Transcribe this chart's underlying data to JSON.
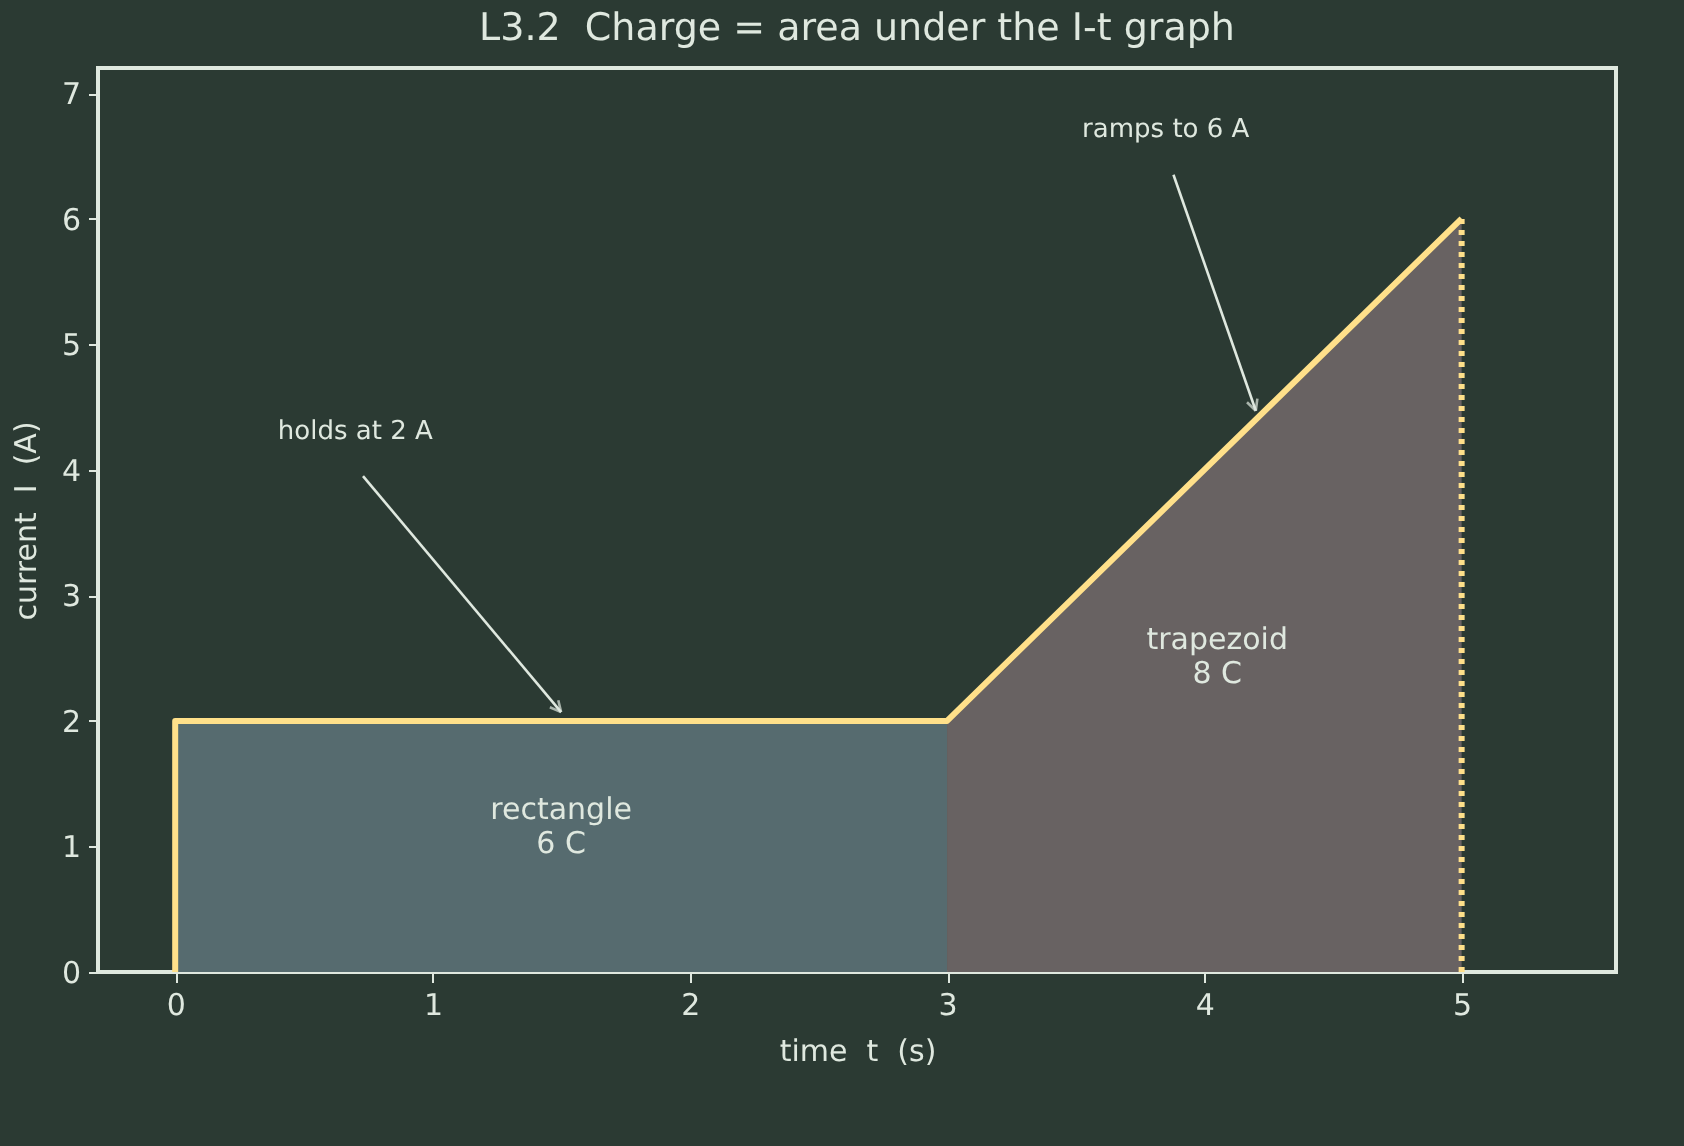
{
  "chart_data": {
    "type": "line",
    "title": "L3.2  Charge = area under the I-t graph",
    "xlabel": "time  t  (s)",
    "ylabel": "current  I  (A)",
    "xlim": [
      -0.3,
      5.6
    ],
    "ylim": [
      0,
      7.2
    ],
    "xticks": [
      0,
      1,
      2,
      3,
      4,
      5
    ],
    "yticks": [
      0,
      1,
      2,
      3,
      4,
      5,
      6,
      7
    ],
    "grid": false,
    "series": [
      {
        "type": "area",
        "color": "#566b6f",
        "x": [
          0,
          3
        ],
        "values": [
          2,
          2
        ]
      },
      {
        "type": "area",
        "color": "#686262",
        "x": [
          3,
          5
        ],
        "values": [
          2,
          6
        ]
      },
      {
        "color": "#ffe08a",
        "x": [
          0,
          0,
          3,
          5
        ],
        "values": [
          0,
          2,
          2,
          6
        ],
        "line_style": "solid"
      },
      {
        "type": "line",
        "color": "#ffe08a",
        "x": [
          5,
          5
        ],
        "values": [
          0,
          6
        ],
        "line_style": "dotted"
      }
    ],
    "annotations": [
      {
        "text": "holds at 2 A",
        "x": 1.5,
        "y": 2
      },
      {
        "text": "ramps to 6 A",
        "x": 4.2,
        "y": 4.4
      },
      "rectangle\n6 C",
      "trapezoid\n8 C"
    ]
  }
}
